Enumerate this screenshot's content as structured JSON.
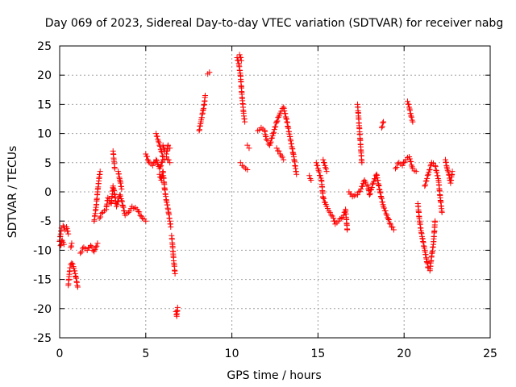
{
  "chart_data": {
    "type": "scatter",
    "title": "Day 069 of 2023, Sidereal Day-to-day VTEC variation (SDTVAR) for receiver nabg",
    "xlabel": "GPS time / hours",
    "ylabel": "SDTVAR / TECUs",
    "xlim": [
      0,
      25
    ],
    "ylim": [
      -25,
      25
    ],
    "xticks": [
      0,
      5,
      10,
      15,
      20,
      25
    ],
    "yticks": [
      -25,
      -20,
      -15,
      -10,
      -5,
      0,
      5,
      10,
      15,
      20,
      25
    ],
    "grid": true,
    "marker": "+",
    "color": "#ff0000",
    "series": [
      {
        "name": "SDTVAR",
        "segments": [
          [
            [
              0.0,
              -8.5
            ],
            [
              0.1,
              -6.2
            ],
            [
              0.2,
              -5.8
            ],
            [
              0.3,
              -6.5
            ],
            [
              0.4,
              -6.0
            ],
            [
              0.5,
              -7.2
            ]
          ],
          [
            [
              0.05,
              -9.2
            ],
            [
              0.15,
              -8.3
            ],
            [
              0.25,
              -9.0
            ]
          ],
          [
            [
              0.5,
              -16.0
            ],
            [
              0.55,
              -14.5
            ],
            [
              0.6,
              -13.0
            ],
            [
              0.7,
              -12.2
            ],
            [
              0.8,
              -12.8
            ],
            [
              0.9,
              -14.0
            ],
            [
              1.0,
              -15.5
            ],
            [
              1.05,
              -16.3
            ]
          ],
          [
            [
              0.65,
              -9.5
            ],
            [
              0.7,
              -8.8
            ]
          ],
          [
            [
              1.2,
              -10.5
            ],
            [
              1.4,
              -9.5
            ],
            [
              1.6,
              -10.0
            ],
            [
              1.8,
              -9.2
            ],
            [
              2.0,
              -10.2
            ],
            [
              2.1,
              -9.5
            ],
            [
              2.2,
              -8.8
            ]
          ],
          [
            [
              2.0,
              -5.0
            ],
            [
              2.1,
              -3.0
            ],
            [
              2.2,
              0.0
            ],
            [
              2.3,
              2.5
            ],
            [
              2.35,
              3.5
            ]
          ],
          [
            [
              2.3,
              -4.5
            ],
            [
              2.5,
              -3.5
            ],
            [
              2.7,
              -3.0
            ],
            [
              2.8,
              -1.0
            ],
            [
              3.0,
              -2.0
            ],
            [
              3.1,
              1.0
            ],
            [
              3.2,
              -0.5
            ],
            [
              3.3,
              -2.5
            ],
            [
              3.5,
              -0.5
            ],
            [
              3.6,
              -1.5
            ],
            [
              3.8,
              -4.0
            ],
            [
              4.0,
              -3.5
            ],
            [
              4.2,
              -2.5
            ],
            [
              4.5,
              -3.0
            ],
            [
              4.8,
              -4.5
            ],
            [
              5.0,
              -5.0
            ]
          ],
          [
            [
              3.1,
              7.0
            ],
            [
              3.15,
              5.5
            ],
            [
              3.2,
              4.0
            ]
          ],
          [
            [
              3.4,
              3.5
            ],
            [
              3.5,
              2.0
            ],
            [
              3.6,
              0.5
            ]
          ],
          [
            [
              5.0,
              6.5
            ],
            [
              5.2,
              5.0
            ],
            [
              5.4,
              4.5
            ],
            [
              5.6,
              5.5
            ],
            [
              5.8,
              4.0
            ],
            [
              6.0,
              5.5
            ],
            [
              6.2,
              6.0
            ],
            [
              6.4,
              5.0
            ]
          ],
          [
            [
              5.6,
              10.0
            ],
            [
              5.7,
              9.0
            ],
            [
              5.8,
              8.0
            ],
            [
              5.9,
              7.0
            ],
            [
              6.0,
              6.0
            ]
          ],
          [
            [
              6.0,
              8.0
            ],
            [
              6.1,
              7.0
            ],
            [
              6.2,
              6.5
            ],
            [
              6.3,
              8.0
            ],
            [
              6.4,
              7.5
            ]
          ],
          [
            [
              5.8,
              3.0
            ],
            [
              5.9,
              2.0
            ],
            [
              6.0,
              3.5
            ],
            [
              6.1,
              0.5
            ],
            [
              6.2,
              -1.5
            ],
            [
              6.3,
              -3.0
            ],
            [
              6.4,
              -5.0
            ],
            [
              6.45,
              -6.0
            ]
          ],
          [
            [
              6.5,
              -7.5
            ],
            [
              6.55,
              -9.0
            ],
            [
              6.6,
              -11.0
            ],
            [
              6.65,
              -12.5
            ],
            [
              6.7,
              -14.0
            ]
          ],
          [
            [
              6.75,
              -20.5
            ],
            [
              6.8,
              -21.3
            ],
            [
              6.85,
              -19.8
            ]
          ],
          [
            [
              8.1,
              10.5
            ],
            [
              8.2,
              12.0
            ],
            [
              8.3,
              13.5
            ],
            [
              8.4,
              15.0
            ],
            [
              8.45,
              16.5
            ]
          ],
          [
            [
              8.6,
              20.2
            ],
            [
              8.7,
              20.5
            ]
          ],
          [
            [
              10.3,
              23.0
            ],
            [
              10.4,
              22.0
            ],
            [
              10.5,
              20.0
            ],
            [
              10.55,
              18.0
            ],
            [
              10.6,
              16.0
            ],
            [
              10.65,
              14.5
            ],
            [
              10.7,
              13.0
            ],
            [
              10.75,
              12.0
            ]
          ],
          [
            [
              10.45,
              23.5
            ],
            [
              10.55,
              22.5
            ]
          ],
          [
            [
              10.5,
              5.0
            ],
            [
              10.6,
              4.5
            ],
            [
              10.8,
              4.0
            ],
            [
              10.9,
              3.8
            ]
          ],
          [
            [
              10.9,
              8.0
            ],
            [
              11.0,
              7.5
            ]
          ],
          [
            [
              11.5,
              10.5
            ],
            [
              11.7,
              11.0
            ],
            [
              11.9,
              10.5
            ],
            [
              12.0,
              9.0
            ],
            [
              12.2,
              8.0
            ],
            [
              12.4,
              10.0
            ],
            [
              12.6,
              12.0
            ],
            [
              12.8,
              13.5
            ],
            [
              13.0,
              14.5
            ],
            [
              13.2,
              12.0
            ],
            [
              13.4,
              9.0
            ],
            [
              13.6,
              6.0
            ],
            [
              13.7,
              4.0
            ],
            [
              13.75,
              3.0
            ]
          ],
          [
            [
              12.6,
              7.5
            ],
            [
              12.8,
              6.5
            ],
            [
              13.0,
              5.5
            ]
          ],
          [
            [
              14.5,
              2.8
            ],
            [
              14.6,
              2.0
            ]
          ],
          [
            [
              14.9,
              5.0
            ],
            [
              15.0,
              4.0
            ],
            [
              15.2,
              2.0
            ],
            [
              15.3,
              -1.0
            ],
            [
              15.5,
              -2.5
            ],
            [
              15.7,
              -3.5
            ],
            [
              15.9,
              -4.5
            ],
            [
              16.0,
              -5.5
            ],
            [
              16.2,
              -5.0
            ],
            [
              16.5,
              -4.0
            ],
            [
              16.6,
              -3.0
            ],
            [
              16.7,
              -6.5
            ]
          ],
          [
            [
              15.3,
              5.5
            ],
            [
              15.4,
              4.5
            ],
            [
              15.5,
              3.5
            ]
          ],
          [
            [
              16.8,
              0.0
            ],
            [
              17.0,
              -0.8
            ],
            [
              17.3,
              -0.5
            ],
            [
              17.5,
              0.5
            ],
            [
              17.7,
              2.0
            ],
            [
              17.9,
              1.0
            ],
            [
              18.0,
              -0.5
            ],
            [
              18.2,
              1.5
            ],
            [
              18.4,
              3.0
            ],
            [
              18.6,
              0.0
            ],
            [
              18.8,
              -2.5
            ],
            [
              19.0,
              -4.0
            ],
            [
              19.2,
              -5.5
            ],
            [
              19.4,
              -6.5
            ]
          ],
          [
            [
              17.3,
              15.0
            ],
            [
              17.35,
              13.0
            ],
            [
              17.4,
              11.0
            ],
            [
              17.45,
              9.0
            ],
            [
              17.5,
              7.0
            ],
            [
              17.55,
              5.0
            ]
          ],
          [
            [
              18.7,
              11.0
            ],
            [
              18.8,
              12.0
            ]
          ],
          [
            [
              19.5,
              4.0
            ],
            [
              19.7,
              5.0
            ],
            [
              19.9,
              4.5
            ],
            [
              20.1,
              5.5
            ],
            [
              20.3,
              6.0
            ],
            [
              20.5,
              4.0
            ],
            [
              20.7,
              3.5
            ]
          ],
          [
            [
              20.2,
              15.5
            ],
            [
              20.3,
              14.5
            ],
            [
              20.4,
              13.0
            ],
            [
              20.5,
              12.0
            ]
          ],
          [
            [
              20.8,
              -2.0
            ],
            [
              20.9,
              -5.0
            ],
            [
              21.0,
              -7.0
            ],
            [
              21.1,
              -8.5
            ],
            [
              21.2,
              -10.0
            ],
            [
              21.3,
              -11.5
            ],
            [
              21.4,
              -13.0
            ],
            [
              21.5,
              -13.5
            ],
            [
              21.6,
              -11.0
            ],
            [
              21.7,
              -9.0
            ],
            [
              21.8,
              -5.0
            ]
          ],
          [
            [
              21.2,
              1.0
            ],
            [
              21.4,
              3.0
            ],
            [
              21.6,
              5.0
            ],
            [
              21.8,
              4.5
            ],
            [
              22.0,
              2.0
            ],
            [
              22.1,
              -1.0
            ],
            [
              22.2,
              -3.5
            ]
          ],
          [
            [
              22.4,
              5.5
            ],
            [
              22.5,
              4.0
            ],
            [
              22.6,
              3.0
            ],
            [
              22.7,
              1.5
            ],
            [
              22.8,
              3.5
            ]
          ]
        ]
      }
    ]
  }
}
